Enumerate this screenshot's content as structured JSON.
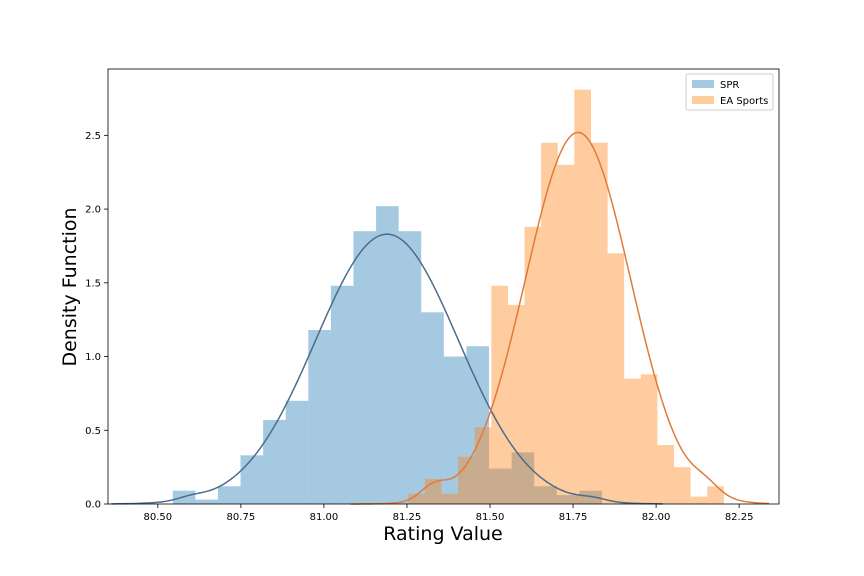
{
  "chart_data": {
    "type": "histogram",
    "xlabel": "Rating Value",
    "ylabel": "Density Function",
    "xlim": [
      80.35,
      82.37
    ],
    "ylim": [
      0,
      2.95
    ],
    "grid": false,
    "legend_position": "top-right",
    "x_ticks": [
      {
        "value": 80.5,
        "label": "80.50"
      },
      {
        "value": 80.75,
        "label": "80.75"
      },
      {
        "value": 81.0,
        "label": "81.00"
      },
      {
        "value": 81.25,
        "label": "81.25"
      },
      {
        "value": 81.5,
        "label": "81.50"
      },
      {
        "value": 81.75,
        "label": "81.75"
      },
      {
        "value": 82.0,
        "label": "82.00"
      },
      {
        "value": 82.25,
        "label": "82.25"
      }
    ],
    "y_ticks": [
      {
        "value": 0.0,
        "label": "0.0"
      },
      {
        "value": 0.5,
        "label": "0.5"
      },
      {
        "value": 1.0,
        "label": "1.0"
      },
      {
        "value": 1.5,
        "label": "1.5"
      },
      {
        "value": 2.0,
        "label": "2.0"
      },
      {
        "value": 2.5,
        "label": "2.5"
      }
    ],
    "series": [
      {
        "name": "SPR",
        "color": "#1f77b4",
        "fill_alpha": 0.4,
        "kde_color": "#4a6d8c",
        "bins": [
          {
            "x0": 80.545,
            "x1": 80.613,
            "density": 0.09
          },
          {
            "x0": 80.613,
            "x1": 80.681,
            "density": 0.03
          },
          {
            "x0": 80.681,
            "x1": 80.749,
            "density": 0.12
          },
          {
            "x0": 80.749,
            "x1": 80.817,
            "density": 0.33
          },
          {
            "x0": 80.817,
            "x1": 80.885,
            "density": 0.57
          },
          {
            "x0": 80.885,
            "x1": 80.953,
            "density": 0.7
          },
          {
            "x0": 80.953,
            "x1": 81.021,
            "density": 1.18
          },
          {
            "x0": 81.021,
            "x1": 81.089,
            "density": 1.48
          },
          {
            "x0": 81.089,
            "x1": 81.157,
            "density": 1.85
          },
          {
            "x0": 81.157,
            "x1": 81.225,
            "density": 2.02
          },
          {
            "x0": 81.225,
            "x1": 81.293,
            "density": 1.85
          },
          {
            "x0": 81.293,
            "x1": 81.361,
            "density": 1.3
          },
          {
            "x0": 81.361,
            "x1": 81.429,
            "density": 1.0
          },
          {
            "x0": 81.429,
            "x1": 81.497,
            "density": 1.07
          },
          {
            "x0": 81.497,
            "x1": 81.565,
            "density": 0.24
          },
          {
            "x0": 81.565,
            "x1": 81.633,
            "density": 0.35
          },
          {
            "x0": 81.633,
            "x1": 81.701,
            "density": 0.12
          },
          {
            "x0": 81.701,
            "x1": 81.769,
            "density": 0.06
          },
          {
            "x0": 81.769,
            "x1": 81.837,
            "density": 0.09
          }
        ],
        "kde": {
          "mean": 81.19,
          "sd": 0.215,
          "peak": 1.83,
          "x_range": [
            80.36,
            82.02
          ],
          "secondary_bumps": [
            {
              "mean": 80.6,
              "sd": 0.04,
              "amp": 0.02
            },
            {
              "mean": 81.81,
              "sd": 0.04,
              "amp": 0.02
            }
          ]
        }
      },
      {
        "name": "EA Sports",
        "color": "#ff7f0e",
        "fill_alpha": 0.4,
        "kde_color": "#e07b39",
        "bins": [
          {
            "x0": 81.254,
            "x1": 81.304,
            "density": 0.07
          },
          {
            "x0": 81.304,
            "x1": 81.354,
            "density": 0.17
          },
          {
            "x0": 81.354,
            "x1": 81.404,
            "density": 0.07
          },
          {
            "x0": 81.404,
            "x1": 81.454,
            "density": 0.32
          },
          {
            "x0": 81.454,
            "x1": 81.504,
            "density": 0.52
          },
          {
            "x0": 81.504,
            "x1": 81.554,
            "density": 1.48
          },
          {
            "x0": 81.554,
            "x1": 81.604,
            "density": 1.35
          },
          {
            "x0": 81.604,
            "x1": 81.654,
            "density": 1.88
          },
          {
            "x0": 81.654,
            "x1": 81.704,
            "density": 2.45
          },
          {
            "x0": 81.704,
            "x1": 81.754,
            "density": 2.3
          },
          {
            "x0": 81.754,
            "x1": 81.804,
            "density": 2.81
          },
          {
            "x0": 81.804,
            "x1": 81.854,
            "density": 2.45
          },
          {
            "x0": 81.854,
            "x1": 81.904,
            "density": 1.7
          },
          {
            "x0": 81.904,
            "x1": 81.954,
            "density": 0.85
          },
          {
            "x0": 81.954,
            "x1": 82.004,
            "density": 0.88
          },
          {
            "x0": 82.004,
            "x1": 82.054,
            "density": 0.4
          },
          {
            "x0": 82.054,
            "x1": 82.104,
            "density": 0.25
          },
          {
            "x0": 82.104,
            "x1": 82.154,
            "density": 0.05
          },
          {
            "x0": 82.154,
            "x1": 82.204,
            "density": 0.12
          }
        ],
        "kde": {
          "mean": 81.765,
          "sd": 0.158,
          "peak": 2.52,
          "x_range": [
            81.08,
            82.34
          ],
          "secondary_bumps": [
            {
              "mean": 81.33,
              "sd": 0.04,
              "amp": 0.09
            },
            {
              "mean": 82.15,
              "sd": 0.04,
              "amp": 0.06
            }
          ]
        }
      }
    ]
  }
}
